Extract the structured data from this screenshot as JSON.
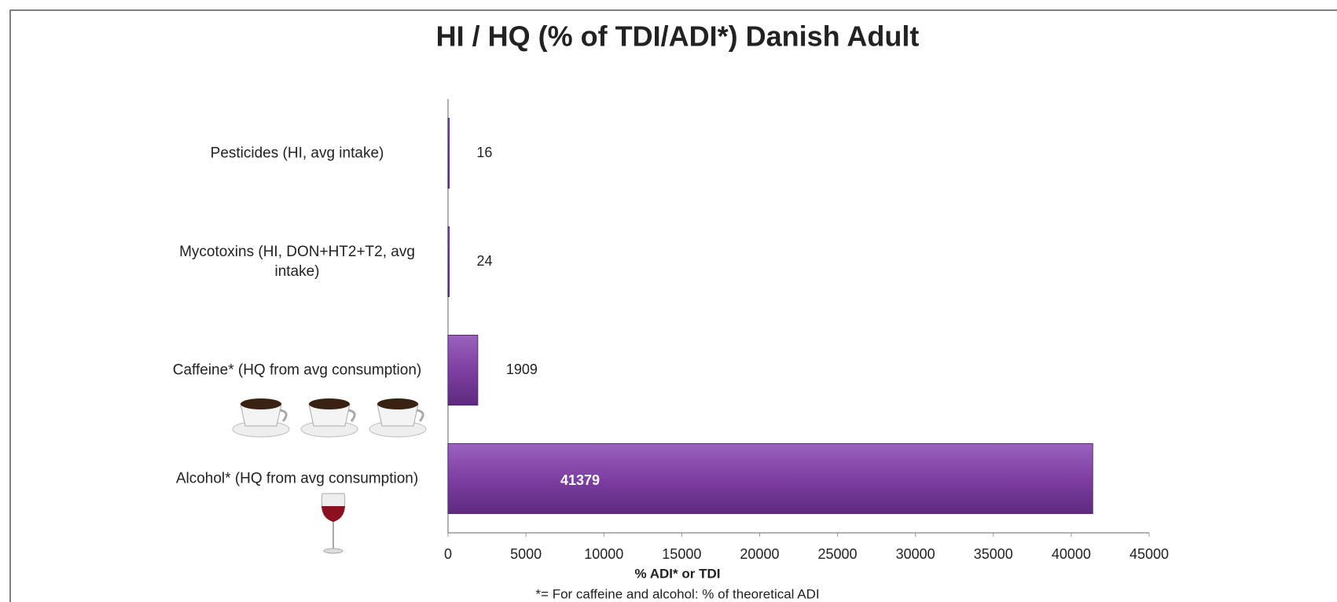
{
  "chart_data": {
    "type": "bar",
    "orientation": "horizontal",
    "title": "HI / HQ (% of TDI/ADI*) Danish Adult",
    "categories": [
      "Pesticides (HI, avg intake)",
      "Mycotoxins (HI, DON+HT2+T2, avg intake)",
      "Caffeine* (HQ from avg consumption)",
      "Alcohol* (HQ from avg consumption)"
    ],
    "values": [
      16,
      24,
      1909,
      41379
    ],
    "color": "#7e3fa3",
    "xlim": [
      0,
      45000
    ],
    "xticks": [
      0,
      5000,
      10000,
      15000,
      20000,
      25000,
      30000,
      35000,
      40000,
      45000
    ],
    "xlabel": "% ADI* or TDI",
    "footnote": "*= For caffeine and alcohol: % of theoretical ADI"
  }
}
